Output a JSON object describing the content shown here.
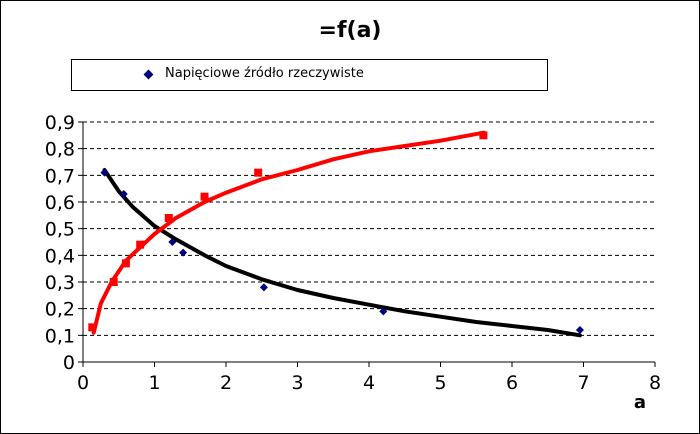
{
  "chart_data": {
    "type": "scatter",
    "title": "=f(a)",
    "xlabel": "a",
    "ylabel": "",
    "xlim": [
      0,
      8
    ],
    "ylim": [
      0,
      0.9
    ],
    "xticks": [
      "0",
      "1",
      "2",
      "3",
      "4",
      "5",
      "6",
      "7",
      "8"
    ],
    "yticks": [
      "0",
      "0,1",
      "0,2",
      "0,3",
      "0,4",
      "0,5",
      "0,6",
      "0,7",
      "0,8",
      "0,9"
    ],
    "grid": "horizontal dashed",
    "legend": {
      "placement": "top",
      "entries": [
        "Napięciowe źródło rzeczywiste"
      ]
    },
    "series": [
      {
        "name": "Napięciowe źródło rzeczywiste",
        "marker": "diamond",
        "color": "#000080",
        "points": [
          [
            0.3,
            0.71
          ],
          [
            0.57,
            0.63
          ],
          [
            1.25,
            0.45
          ],
          [
            1.4,
            0.41
          ],
          [
            2.53,
            0.28
          ],
          [
            4.2,
            0.19
          ],
          [
            6.95,
            0.12
          ]
        ],
        "trendline": {
          "color": "#000000",
          "points": [
            [
              0.3,
              0.72
            ],
            [
              0.5,
              0.64
            ],
            [
              0.7,
              0.58
            ],
            [
              1.0,
              0.51
            ],
            [
              1.3,
              0.46
            ],
            [
              1.7,
              0.4
            ],
            [
              2.0,
              0.36
            ],
            [
              2.5,
              0.31
            ],
            [
              3.0,
              0.27
            ],
            [
              3.5,
              0.24
            ],
            [
              4.0,
              0.215
            ],
            [
              4.5,
              0.19
            ],
            [
              5.0,
              0.17
            ],
            [
              5.5,
              0.15
            ],
            [
              6.0,
              0.135
            ],
            [
              6.5,
              0.12
            ],
            [
              6.95,
              0.1
            ]
          ]
        }
      },
      {
        "marker": "square",
        "color": "#ff0000",
        "points": [
          [
            0.13,
            0.13
          ],
          [
            0.43,
            0.3
          ],
          [
            0.6,
            0.37
          ],
          [
            0.8,
            0.44
          ],
          [
            1.2,
            0.54
          ],
          [
            1.7,
            0.62
          ],
          [
            2.45,
            0.71
          ],
          [
            5.6,
            0.85
          ]
        ],
        "trendline": {
          "color": "#ff0000",
          "points": [
            [
              0.15,
              0.11
            ],
            [
              0.25,
              0.22
            ],
            [
              0.4,
              0.3
            ],
            [
              0.6,
              0.38
            ],
            [
              0.8,
              0.43
            ],
            [
              1.0,
              0.48
            ],
            [
              1.3,
              0.54
            ],
            [
              1.7,
              0.6
            ],
            [
              2.0,
              0.635
            ],
            [
              2.5,
              0.685
            ],
            [
              3.0,
              0.72
            ],
            [
              3.5,
              0.76
            ],
            [
              4.0,
              0.79
            ],
            [
              4.5,
              0.81
            ],
            [
              5.0,
              0.83
            ],
            [
              5.6,
              0.86
            ]
          ]
        }
      }
    ]
  }
}
